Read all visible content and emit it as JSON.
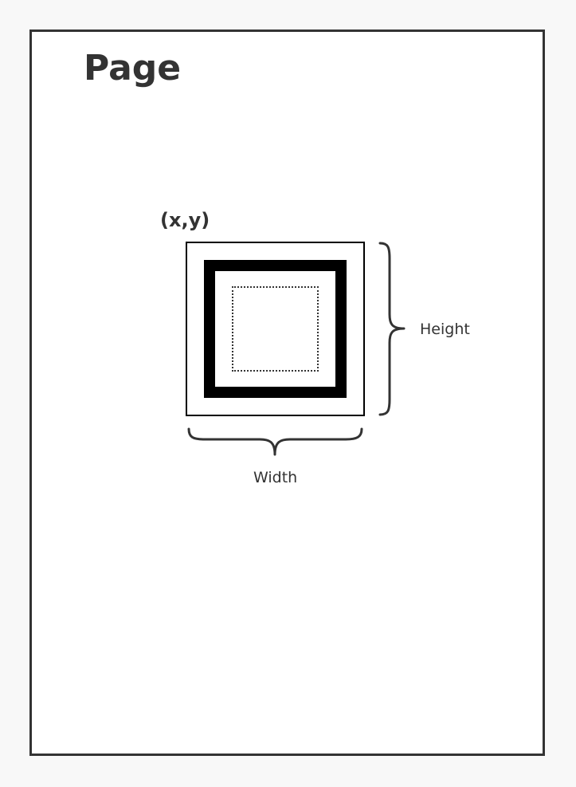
{
  "diagram": {
    "page_title": "Page",
    "origin_label": "(x,y)",
    "height_label": "Height",
    "width_label": "Width"
  },
  "colors": {
    "page_background": "#ffffff",
    "outline": "#333333",
    "box_stroke": "#000000"
  }
}
